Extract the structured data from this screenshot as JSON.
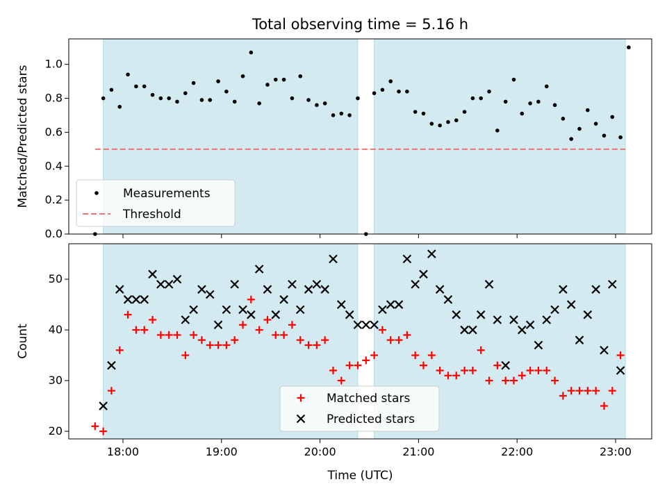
{
  "chart_data": [
    {
      "type": "scatter",
      "title": "Total observing time = 5.16 h",
      "ylabel": "Matched/Predicted stars",
      "xlabel": "",
      "xlim": [
        "17:27",
        "23:22"
      ],
      "ylim": [
        0,
        1.15
      ],
      "yticks": [
        "0.0",
        "0.2",
        "0.4",
        "0.6",
        "0.8",
        "1.0"
      ],
      "threshold": {
        "name": "Threshold",
        "value": 0.5,
        "color": "#f07474",
        "style": "dashed",
        "x_range": [
          "17:43",
          "23:06"
        ]
      },
      "shaded_intervals": [
        [
          "17:48",
          "20:23"
        ],
        [
          "20:33",
          "23:06"
        ]
      ],
      "shade_color": "#d3eaf0",
      "legend": {
        "position": "lower left",
        "entries": [
          "Measurements",
          "Threshold"
        ]
      },
      "series": [
        {
          "name": "Measurements",
          "color": "#000000",
          "marker": "dot",
          "x": [
            "17:43",
            "17:48",
            "17:53",
            "17:58",
            "18:03",
            "18:08",
            "18:13",
            "18:18",
            "18:23",
            "18:28",
            "18:33",
            "18:38",
            "18:43",
            "18:48",
            "18:53",
            "18:58",
            "19:03",
            "19:08",
            "19:13",
            "19:18",
            "19:23",
            "19:28",
            "19:33",
            "19:38",
            "19:43",
            "19:48",
            "19:53",
            "19:58",
            "20:03",
            "20:08",
            "20:13",
            "20:18",
            "20:23",
            "20:28",
            "20:33",
            "20:38",
            "20:43",
            "20:48",
            "20:53",
            "20:58",
            "21:03",
            "21:08",
            "21:13",
            "21:18",
            "21:23",
            "21:28",
            "21:33",
            "21:38",
            "21:43",
            "21:48",
            "21:53",
            "21:58",
            "22:03",
            "22:08",
            "22:13",
            "22:18",
            "22:23",
            "22:28",
            "22:33",
            "22:38",
            "22:43",
            "22:48",
            "22:53",
            "22:58",
            "23:03",
            "23:08"
          ],
          "y": [
            0.0,
            0.8,
            0.85,
            0.75,
            0.94,
            0.87,
            0.87,
            0.82,
            0.8,
            0.8,
            0.78,
            0.83,
            0.89,
            0.79,
            0.79,
            0.9,
            0.84,
            0.78,
            0.93,
            1.07,
            0.77,
            0.88,
            0.91,
            0.91,
            0.8,
            0.93,
            0.79,
            0.76,
            0.77,
            0.7,
            0.71,
            0.7,
            0.8,
            0.0,
            0.83,
            0.85,
            0.9,
            0.84,
            0.84,
            0.72,
            0.71,
            0.65,
            0.64,
            0.66,
            0.67,
            0.72,
            0.8,
            0.8,
            0.84,
            0.61,
            0.78,
            0.91,
            0.71,
            0.77,
            0.78,
            0.87,
            0.76,
            0.68,
            0.56,
            0.62,
            0.73,
            0.65,
            0.58,
            0.69,
            0.57,
            1.1
          ]
        }
      ]
    },
    {
      "type": "scatter",
      "title": "",
      "xlabel": "Time (UTC)",
      "ylabel": "Count",
      "xlim": [
        "17:27",
        "23:22"
      ],
      "ylim": [
        18.5,
        57
      ],
      "xticks": [
        "18:00",
        "19:00",
        "20:00",
        "21:00",
        "22:00",
        "23:00"
      ],
      "yticks": [
        "20",
        "30",
        "40",
        "50"
      ],
      "shaded_intervals": [
        [
          "17:48",
          "20:23"
        ],
        [
          "20:33",
          "23:06"
        ]
      ],
      "shade_color": "#d3eaf0",
      "legend": {
        "position": "lower center",
        "entries": [
          "Matched stars",
          "Predicted stars"
        ]
      },
      "x": [
        "17:43",
        "17:48",
        "17:53",
        "17:58",
        "18:03",
        "18:08",
        "18:13",
        "18:18",
        "18:23",
        "18:28",
        "18:33",
        "18:38",
        "18:43",
        "18:48",
        "18:53",
        "18:58",
        "19:03",
        "19:08",
        "19:13",
        "19:18",
        "19:23",
        "19:28",
        "19:33",
        "19:38",
        "19:43",
        "19:48",
        "19:53",
        "19:58",
        "20:03",
        "20:08",
        "20:13",
        "20:18",
        "20:23",
        "20:28",
        "20:33",
        "20:38",
        "20:43",
        "20:48",
        "20:53",
        "20:58",
        "21:03",
        "21:08",
        "21:13",
        "21:18",
        "21:23",
        "21:28",
        "21:33",
        "21:38",
        "21:43",
        "21:48",
        "21:53",
        "21:58",
        "22:03",
        "22:08",
        "22:13",
        "22:18",
        "22:23",
        "22:28",
        "22:33",
        "22:38",
        "22:43",
        "22:48",
        "22:53",
        "22:58",
        "23:03",
        "23:08"
      ],
      "series": [
        {
          "name": "Matched stars",
          "color": "#ff0000",
          "marker": "plus",
          "values": [
            21,
            20,
            28,
            36,
            43,
            40,
            40,
            42,
            39,
            39,
            39,
            35,
            39,
            38,
            37,
            37,
            37,
            38,
            41,
            46,
            40,
            42,
            39,
            39,
            41,
            38,
            37,
            37,
            38,
            32,
            30,
            33,
            33,
            34,
            35,
            40,
            38,
            38,
            39,
            35,
            33,
            35,
            32,
            31,
            31,
            32,
            32,
            36,
            30,
            33,
            30,
            30,
            31,
            32,
            32,
            32,
            30,
            27,
            28,
            28,
            28,
            28,
            25,
            28,
            35,
            null
          ]
        },
        {
          "name": "Predicted stars",
          "color": "#000000",
          "marker": "x",
          "values": [
            null,
            25,
            33,
            48,
            46,
            46,
            46,
            51,
            49,
            49,
            50,
            42,
            44,
            48,
            47,
            41,
            44,
            49,
            44,
            43,
            52,
            48,
            43,
            46,
            49,
            44,
            48,
            49,
            48,
            54,
            45,
            43,
            41,
            41,
            41,
            44,
            45,
            45,
            54,
            49,
            51,
            55,
            48,
            46,
            43,
            40,
            40,
            43,
            49,
            42,
            33,
            42,
            40,
            41,
            37,
            42,
            44,
            48,
            45,
            38,
            43,
            48,
            36,
            49,
            32,
            null
          ]
        }
      ]
    }
  ]
}
